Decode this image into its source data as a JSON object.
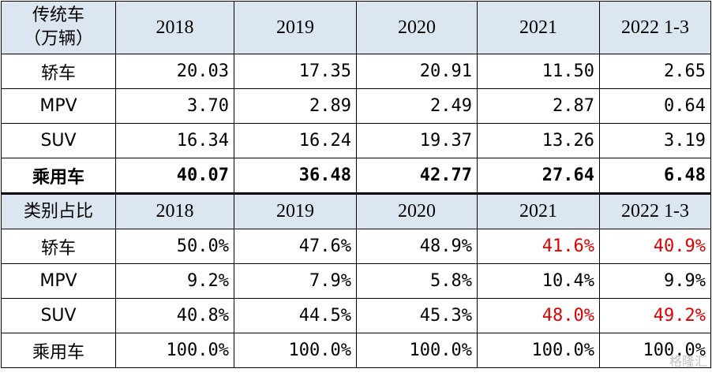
{
  "section1": {
    "header": {
      "label_line1": "传统车",
      "label_line2": "（万辆）",
      "years": [
        "2018",
        "2019",
        "2020",
        "2021",
        "2022 1-3"
      ]
    },
    "rows": [
      {
        "label": "轿车",
        "values": [
          "20.03",
          "17.35",
          "20.91",
          "11.50",
          "2.65"
        ]
      },
      {
        "label": "MPV",
        "values": [
          "3.70",
          "2.89",
          "2.49",
          "2.87",
          "0.64"
        ]
      },
      {
        "label": "SUV",
        "values": [
          "16.34",
          "16.24",
          "19.37",
          "13.26",
          "3.19"
        ]
      },
      {
        "label": "乘用车",
        "values": [
          "40.07",
          "36.48",
          "42.77",
          "27.64",
          "6.48"
        ]
      }
    ]
  },
  "section2": {
    "header": {
      "label": "类别占比",
      "years": [
        "2018",
        "2019",
        "2020",
        "2021",
        "2022 1-3"
      ]
    },
    "rows": [
      {
        "label": "轿车",
        "values": [
          "50.0%",
          "47.6%",
          "48.9%",
          "41.6%",
          "40.9%"
        ]
      },
      {
        "label": "MPV",
        "values": [
          "9.2%",
          "7.9%",
          "5.8%",
          "10.4%",
          "9.9%"
        ]
      },
      {
        "label": "SUV",
        "values": [
          "40.8%",
          "44.5%",
          "45.3%",
          "48.0%",
          "49.2%"
        ]
      },
      {
        "label": "乘用车",
        "values": [
          "100.0%",
          "100.0%",
          "100.0%",
          "100.0%",
          "100.0%"
        ]
      }
    ]
  },
  "highlight_color": "#e00000",
  "header_bg": "#dce6f1",
  "watermark": "格隆汇"
}
